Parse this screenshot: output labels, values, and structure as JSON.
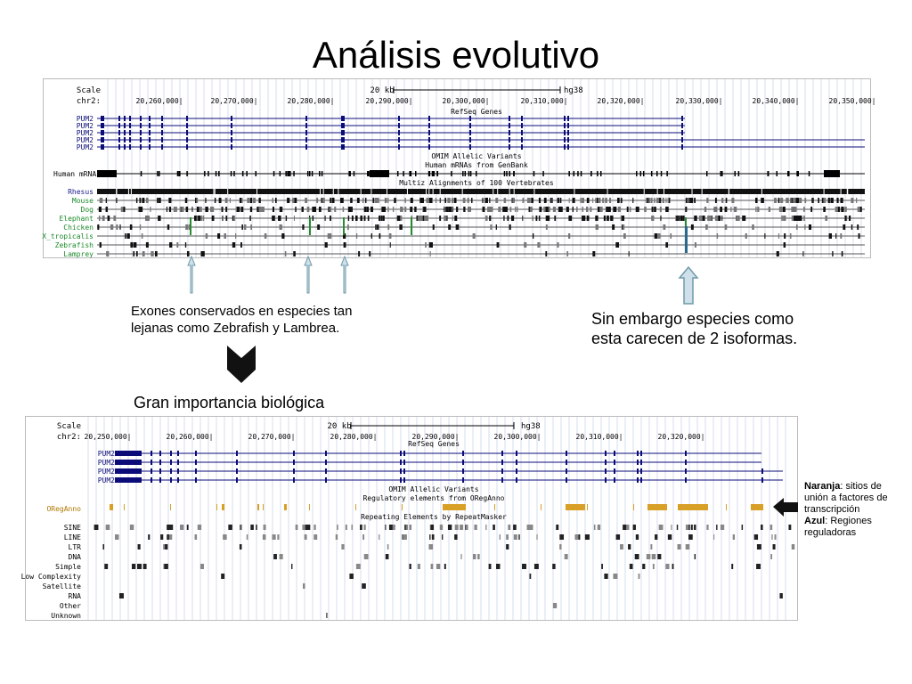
{
  "slide": {
    "title": "Análisis evolutivo",
    "note_conserved": "Exones conservados en especies tan lejanas como Zebrafish y Lambrea.",
    "note_isoforms": "Sin embargo especies como esta carecen de 2 isoformas.",
    "conclusion": "Gran importancia biológica",
    "legend": {
      "orange_label": "Naranja",
      "orange_text": ": sitios de unión a factores de transcripción",
      "blue_label": "Azul",
      "blue_text": ": Regiones reguladoras"
    }
  },
  "browser_top": {
    "scale_label": "Scale",
    "chrom_label": "chr2:",
    "scale_bar": "20 kb",
    "assembly": "hg38",
    "positions": [
      "20,260,000|",
      "20,270,000|",
      "20,280,000|",
      "20,290,000|",
      "20,300,000|",
      "20,310,000|",
      "20,320,000|",
      "20,330,000|",
      "20,340,000|",
      "20,350,000|"
    ],
    "track_titles": {
      "refseq": "RefSeq Genes",
      "omim": "OMIM Allelic Variants",
      "mrna": "Human mRNAs from GenBank",
      "multiz": "Multiz Alignments of 100 Vertebrates"
    },
    "genes": [
      "PUM2",
      "PUM2",
      "PUM2",
      "PUM2",
      "PUM2"
    ],
    "mrna_label": "Human mRNAs",
    "species": [
      "Rhesus",
      "Mouse",
      "Dog",
      "Elephant",
      "Chicken",
      "X_tropicalis",
      "Zebrafish",
      "Lamprey"
    ]
  },
  "browser_bottom": {
    "scale_label": "Scale",
    "chrom_label": "chr2:",
    "scale_bar": "20 kb",
    "assembly": "hg38",
    "positions": [
      "20,250,000|",
      "20,260,000|",
      "20,270,000|",
      "20,280,000|",
      "20,290,000|",
      "20,300,000|",
      "20,310,000|",
      "20,320,000|"
    ],
    "track_titles": {
      "refseq": "RefSeq Genes",
      "omim": "OMIM Allelic Variants",
      "oreg": "Regulatory elements from ORegAnno",
      "repeat": "Repeating Elements by RepeatMasker"
    },
    "genes": [
      "PUM2",
      "PUM2",
      "PUM2",
      "PUM2"
    ],
    "oreganno_label": "ORegAnno",
    "repeat_classes": [
      "SINE",
      "LINE",
      "LTR",
      "DNA",
      "Simple",
      "Low Complexity",
      "Satellite",
      "RNA",
      "Other",
      "Unknown"
    ]
  },
  "colors": {
    "gene": "#0c0c78",
    "species_label": "#1a8a2a",
    "rhesus_label": "#1a1a8a",
    "oreganno": "#d9a028",
    "arrow_fill": "#cfe0ea",
    "arrow_stroke": "#6e9aa8"
  }
}
